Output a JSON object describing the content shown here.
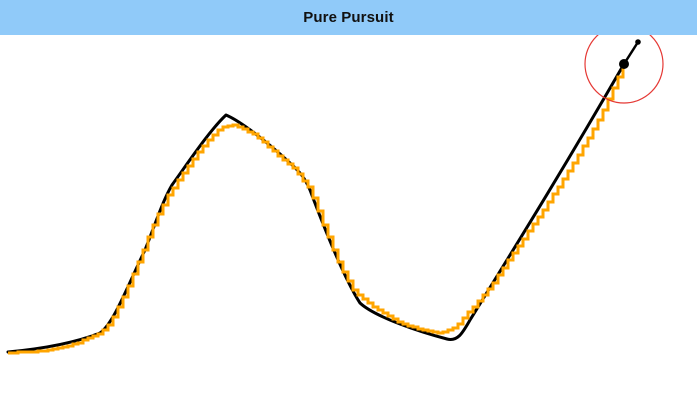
{
  "app": {
    "title": "Pure Pursuit"
  },
  "colors": {
    "title_bar_background": "#90caf9",
    "reference_path": "#000000",
    "robot_trajectory": "#ffa500",
    "lookahead_circle": "#e53935",
    "robot_body": "#000000",
    "heading_indicator": "#000000"
  },
  "simulation": {
    "elements": [
      "reference-path",
      "robot-trajectory",
      "lookahead-circle",
      "robot",
      "heading-indicator"
    ]
  }
}
